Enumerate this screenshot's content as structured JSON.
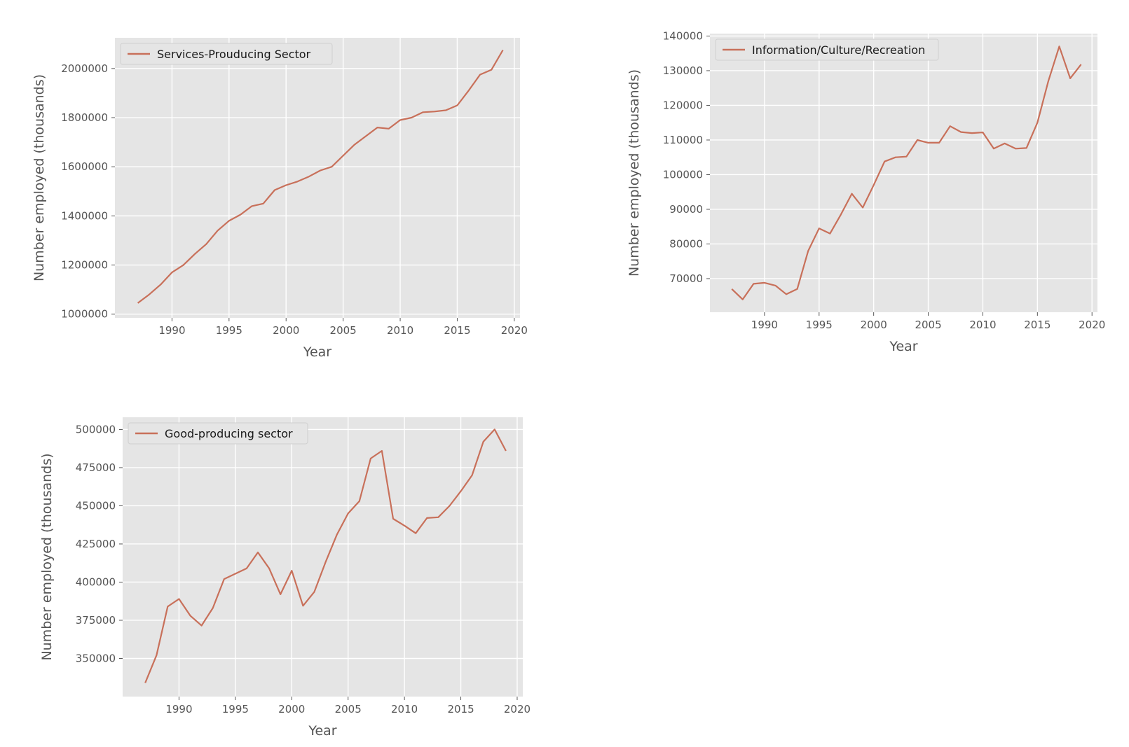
{
  "colors": {
    "background": "#e5e5e5",
    "grid": "#ffffff",
    "line": "#c8705a",
    "tick_text": "#555555"
  },
  "chart_data": [
    {
      "type": "line",
      "title": "",
      "xlabel": "Year",
      "ylabel": "Number employed (thousands)",
      "xlim": [
        1985,
        2020.5
      ],
      "ylim": [
        985000,
        2125000
      ],
      "xticks": [
        1990,
        1995,
        2000,
        2005,
        2010,
        2015,
        2020
      ],
      "yticks": [
        1000000,
        1200000,
        1400000,
        1600000,
        1800000,
        2000000
      ],
      "grid": true,
      "legend_position": "upper-left",
      "series": [
        {
          "name": "Services-Prouducing Sector",
          "x": [
            1987,
            1988,
            1989,
            1990,
            1991,
            1992,
            1993,
            1994,
            1995,
            1996,
            1997,
            1998,
            1999,
            2000,
            2001,
            2002,
            2003,
            2004,
            2005,
            2006,
            2007,
            2008,
            2009,
            2010,
            2011,
            2012,
            2013,
            2014,
            2015,
            2016,
            2017,
            2018,
            2019
          ],
          "y": [
            1045000,
            1080000,
            1120000,
            1170000,
            1200000,
            1245000,
            1285000,
            1340000,
            1380000,
            1405000,
            1440000,
            1450000,
            1505000,
            1525000,
            1540000,
            1560000,
            1585000,
            1600000,
            1645000,
            1690000,
            1725000,
            1760000,
            1755000,
            1790000,
            1800000,
            1822000,
            1825000,
            1830000,
            1850000,
            1910000,
            1975000,
            1995000,
            2075000
          ]
        }
      ]
    },
    {
      "type": "line",
      "title": "",
      "xlabel": "Year",
      "ylabel": "Number employed (thousands)",
      "xlim": [
        1985,
        2020.5
      ],
      "ylim": [
        60300,
        140700
      ],
      "xticks": [
        1990,
        1995,
        2000,
        2005,
        2010,
        2015,
        2020
      ],
      "yticks": [
        70000,
        80000,
        90000,
        100000,
        110000,
        120000,
        130000,
        140000
      ],
      "grid": true,
      "legend_position": "upper-left",
      "series": [
        {
          "name": "Information/Culture/Recreation",
          "x": [
            1987,
            1988,
            1989,
            1990,
            1991,
            1992,
            1993,
            1994,
            1995,
            1996,
            1997,
            1998,
            1999,
            2000,
            2001,
            2002,
            2003,
            2004,
            2005,
            2006,
            2007,
            2008,
            2009,
            2010,
            2011,
            2012,
            2013,
            2014,
            2015,
            2016,
            2017,
            2018,
            2019
          ],
          "y": [
            67000,
            64000,
            68500,
            68800,
            68000,
            65500,
            67000,
            78000,
            84500,
            83000,
            88500,
            94500,
            90500,
            97000,
            103800,
            105000,
            105200,
            110000,
            109200,
            109200,
            114000,
            112300,
            112000,
            112200,
            107500,
            109000,
            107500,
            107700,
            115000,
            127000,
            137000,
            127800,
            131800
          ]
        }
      ]
    },
    {
      "type": "line",
      "title": "",
      "xlabel": "Year",
      "ylabel": "Number employed (thousands)",
      "xlim": [
        1985,
        2020.5
      ],
      "ylim": [
        325000,
        508000
      ],
      "xticks": [
        1990,
        1995,
        2000,
        2005,
        2010,
        2015,
        2020
      ],
      "yticks": [
        350000,
        375000,
        400000,
        425000,
        450000,
        475000,
        500000
      ],
      "grid": true,
      "legend_position": "upper-left",
      "series": [
        {
          "name": "Good-producing sector",
          "x": [
            1987,
            1988,
            1989,
            1990,
            1991,
            1992,
            1993,
            1994,
            1995,
            1996,
            1997,
            1998,
            1999,
            2000,
            2001,
            2002,
            2003,
            2004,
            2005,
            2006,
            2007,
            2008,
            2009,
            2010,
            2011,
            2012,
            2013,
            2014,
            2015,
            2016,
            2017,
            2018,
            2019
          ],
          "y": [
            334000,
            352000,
            384000,
            389000,
            378000,
            371500,
            383000,
            402000,
            405500,
            409000,
            419500,
            409000,
            392000,
            407500,
            384500,
            393500,
            413000,
            431000,
            445000,
            453000,
            481000,
            486000,
            441500,
            437000,
            432000,
            442000,
            442500,
            450000,
            459500,
            470000,
            492000,
            500000,
            486000
          ]
        }
      ]
    }
  ]
}
